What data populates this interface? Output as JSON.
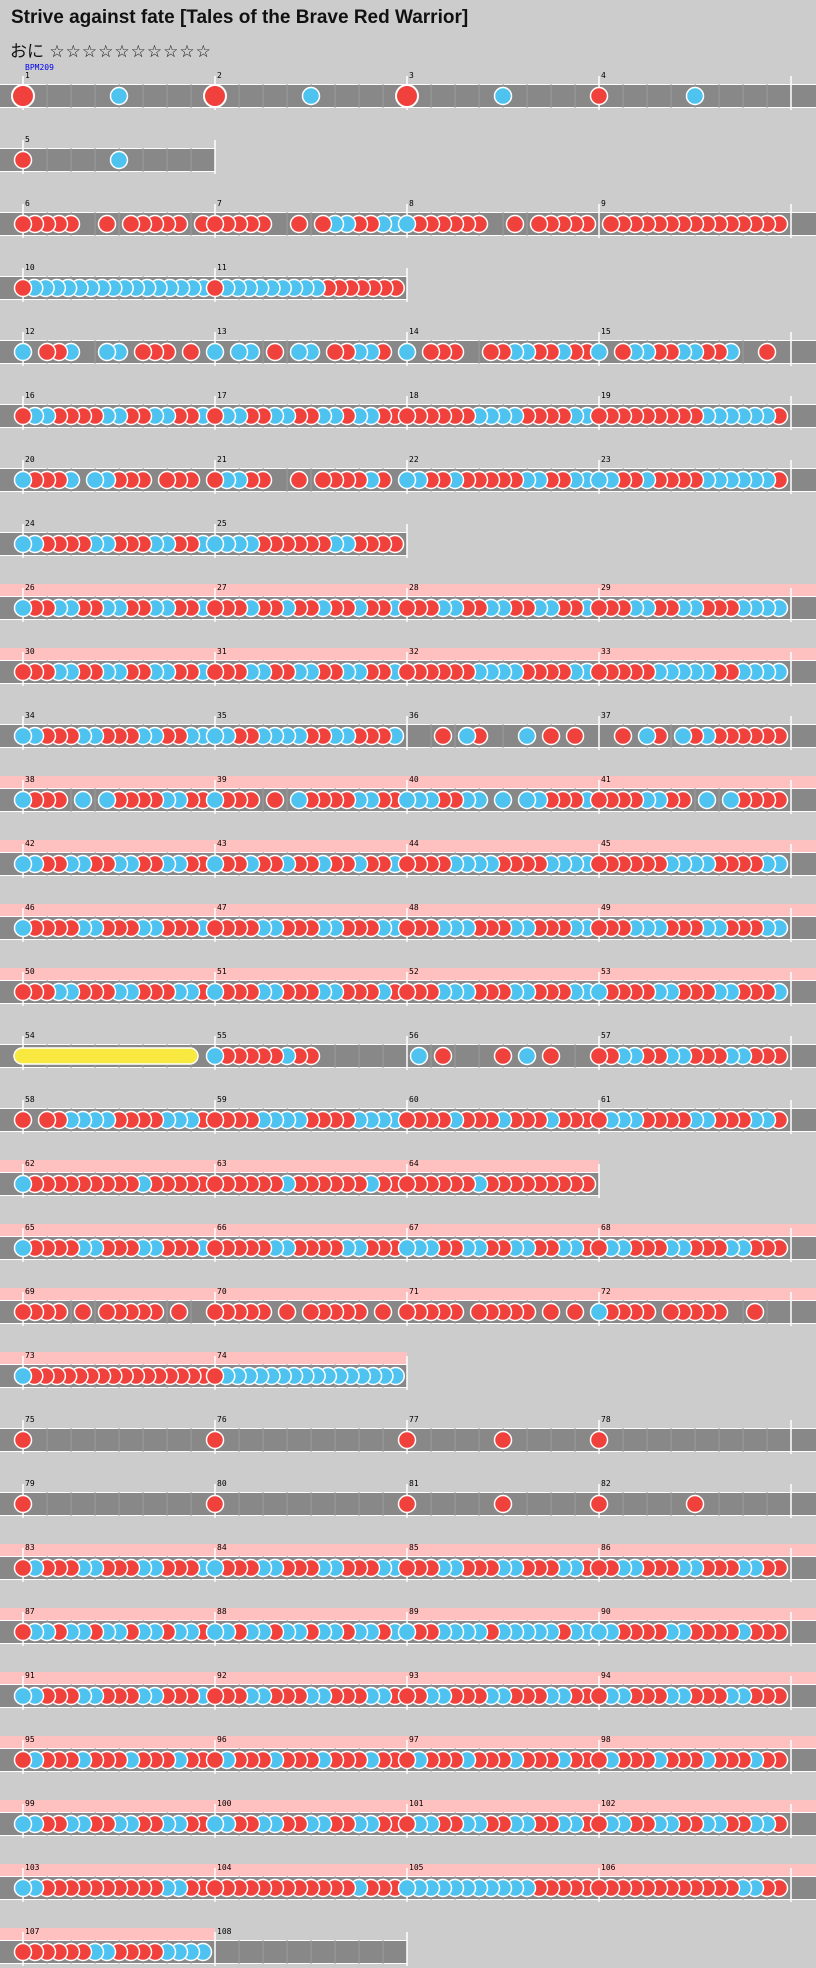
{
  "header": {
    "title": "Strive against fate [Tales of the Brave Red Warrior]",
    "difficulty_label": "おに",
    "stars": "☆☆☆☆☆☆☆☆☆☆"
  },
  "bpm_marker": "BPM209",
  "colors": {
    "background": "#cccccc",
    "lane": "#888888",
    "gogo_highlight": "#ffc0c0",
    "don": "#f0413c",
    "ka": "#4fc3f0",
    "drumroll": "#f8e840"
  },
  "notes_legend": {
    "r": "don (red)",
    "b": "ka (blue)",
    "R": "big don",
    "Y": "drumroll"
  },
  "chart_data": {
    "type": "table",
    "rows": [
      {
        "measures": [
          {
            "n": "1",
            "notes": "R_______b_______"
          },
          {
            "n": "2",
            "notes": "R_______b_______"
          },
          {
            "n": "3",
            "notes": "R_______b_______"
          },
          {
            "n": "4",
            "notes": "r_______b_______"
          }
        ],
        "gogo": false
      },
      {
        "measures": [
          {
            "n": "5",
            "notes": "r___b___"
          }
        ],
        "gogo": false
      },
      {
        "measures": [
          {
            "n": "6",
            "notes": "rrrrr__r_rrrrr_r"
          },
          {
            "n": "7",
            "notes": "rrrrr__r_rbbrrbb"
          },
          {
            "n": "8",
            "notes": "brrrrrr__r_rrrrr"
          },
          {
            "n": "9",
            "notes": "_rrrrrrrrrrrrrrr"
          }
        ],
        "gogo": false
      },
      {
        "measures": [
          {
            "n": "10",
            "notes": "rbbbbbbbbbbbbbbbb"
          },
          {
            "n": "11",
            "notes": "rbbbbbbbbbrrrrrrr"
          }
        ],
        "gogo": false
      },
      {
        "measures": [
          {
            "n": "12",
            "notes": "b_rrb__bb_rrr_r_"
          },
          {
            "n": "13",
            "notes": "b_bb_r_bb_rrbbr_"
          },
          {
            "n": "14",
            "notes": "b_rrr__rrbbrrbrr"
          },
          {
            "n": "15",
            "notes": "b_rbbrrbbrrb__r_"
          }
        ],
        "gogo": false
      },
      {
        "measures": [
          {
            "n": "16",
            "notes": "rbbrrrrbbrrbbrrb"
          },
          {
            "n": "17",
            "notes": "rbbrrbbrrbbrbbrr"
          },
          {
            "n": "18",
            "notes": "rrrrrrbbbbrrrrbb"
          },
          {
            "n": "19",
            "notes": "rrrrrrrrrbbbbbbr"
          }
        ],
        "gogo": false
      },
      {
        "measures": [
          {
            "n": "20",
            "notes": "brrrb_bbrrr_rrr_"
          },
          {
            "n": "21",
            "notes": "rbbrr__r_rrrrbr_"
          },
          {
            "n": "22",
            "notes": "bbrrbrrrrrbbrrbb"
          },
          {
            "n": "23",
            "notes": "bbrrbrrrrbbbbbbr"
          }
        ],
        "gogo": false
      },
      {
        "measures": [
          {
            "n": "24",
            "notes": "bbrrrrbbrrrbbrrb"
          },
          {
            "n": "25",
            "notes": "bbbbrrrrrrbbrrrr"
          }
        ],
        "gogo": false
      },
      {
        "measures": [
          {
            "n": "26",
            "notes": "brrbbrrbbrrbbrrb"
          },
          {
            "n": "27",
            "notes": "rrrbrrbrrbrrbrrb"
          },
          {
            "n": "28",
            "notes": "rrrbbrrbbrrbbrrb"
          },
          {
            "n": "29",
            "notes": "rrrbbrrbbrrrbbbb"
          }
        ],
        "gogo": true
      },
      {
        "measures": [
          {
            "n": "30",
            "notes": "rrrbbrrbbrrbbrrb"
          },
          {
            "n": "31",
            "notes": "rrrbbrrbbrrbbrrb"
          },
          {
            "n": "32",
            "notes": "rrrrrrbbbbrrrrbb"
          },
          {
            "n": "33",
            "notes": "rrrrrbbbbbrrbbbb"
          }
        ],
        "gogo": true
      },
      {
        "measures": [
          {
            "n": "34",
            "notes": "bbrrrbbrrrbbrrbb"
          },
          {
            "n": "35",
            "notes": "bbrrbbbbrrbbrrrb"
          },
          {
            "n": "36",
            "notes": "___r_br___b_r_r_"
          },
          {
            "n": "37",
            "notes": "__r_br_brbrrrrrr"
          }
        ],
        "gogo": false
      },
      {
        "measures": [
          {
            "n": "38",
            "notes": "brrr_b_brrrrbbrr"
          },
          {
            "n": "39",
            "notes": "brrr_r_brrrrbbrr"
          },
          {
            "n": "40",
            "notes": "bbbrrbb_b_bbrrrb"
          },
          {
            "n": "41",
            "notes": "rrrrbbrr_b_brrrr"
          }
        ],
        "gogo": true
      },
      {
        "measures": [
          {
            "n": "42",
            "notes": "bbrrbbrrbbrrbbrr"
          },
          {
            "n": "43",
            "notes": "brrbrrbrrbrrbrrb"
          },
          {
            "n": "44",
            "notes": "rrrrbbbbrrrrbbbb"
          },
          {
            "n": "45",
            "notes": "rrrrrrbbbbrrrrbb"
          }
        ],
        "gogo": true
      },
      {
        "measures": [
          {
            "n": "46",
            "notes": "brrrrbbrrrbbrrrb"
          },
          {
            "n": "47",
            "notes": "rrrrbbrrrbbrrrbb"
          },
          {
            "n": "48",
            "notes": "rrrbbbrrrbbrrrbb"
          },
          {
            "n": "49",
            "notes": "rrrbbbrrrbbrrrbb"
          }
        ],
        "gogo": true
      },
      {
        "measures": [
          {
            "n": "50",
            "notes": "rrrbbrrrbbrrrbbr"
          },
          {
            "n": "51",
            "notes": "brrrbbrrrbbrrrbr"
          },
          {
            "n": "52",
            "notes": "rrrbbbrrrbbrrrbb"
          },
          {
            "n": "53",
            "notes": "brrrrbbrrrbbrrrb"
          }
        ],
        "gogo": true
      },
      {
        "measures": [
          {
            "n": "54",
            "notes": "Y_______________"
          },
          {
            "n": "55",
            "notes": "brrrrrbrr_______"
          },
          {
            "n": "56",
            "notes": "_b_r____r_b_r___"
          },
          {
            "n": "57",
            "notes": "rrbbrrbbrrrbbrrr"
          }
        ],
        "gogo": false
      },
      {
        "measures": [
          {
            "n": "58",
            "notes": "r_rrbbbbrrrrbbbr"
          },
          {
            "n": "59",
            "notes": "rrrrbbbbrrrrbbbb"
          },
          {
            "n": "60",
            "notes": "rrrrbrrrbrrrbrrr"
          },
          {
            "n": "61",
            "notes": "rbbbrrrrbbrrrbbr"
          }
        ],
        "gogo": false
      },
      {
        "measures": [
          {
            "n": "62",
            "notes": "brrrrrrrrrbrrrrr"
          },
          {
            "n": "63",
            "notes": "rrrrrrbrrrrrrbrr"
          },
          {
            "n": "64",
            "notes": "rrrrrrbrrrrrrrrr"
          }
        ],
        "gogo": true
      },
      {
        "measures": [
          {
            "n": "65",
            "notes": "brrrrbbrrrbbrrrb"
          },
          {
            "n": "66",
            "notes": "rrrrrbbrrrrbbrrr"
          },
          {
            "n": "67",
            "notes": "bbbrrbbrrbbrrbbr"
          },
          {
            "n": "68",
            "notes": "rbbrrrbbrrrbbrrr"
          }
        ],
        "gogo": true
      },
      {
        "measures": [
          {
            "n": "69",
            "notes": "rrrr_r_rrrrr_r__"
          },
          {
            "n": "70",
            "notes": "rrrrr_r_rrrrr_r_"
          },
          {
            "n": "71",
            "notes": "rrrrr_rrrrr_r_r_"
          },
          {
            "n": "72",
            "notes": "brrrr_rrrrr__r__"
          }
        ],
        "gogo": true
      },
      {
        "measures": [
          {
            "n": "73",
            "notes": "brrrrrrrrrrrrrrrr"
          },
          {
            "n": "74",
            "notes": "rbbbbbbbbbbbbbbbb"
          }
        ],
        "gogo": true
      },
      {
        "measures": [
          {
            "n": "75",
            "notes": "r_______________"
          },
          {
            "n": "76",
            "notes": "r_______________"
          },
          {
            "n": "77",
            "notes": "r_______r_______"
          },
          {
            "n": "78",
            "notes": "r_______________"
          }
        ],
        "gogo": false
      },
      {
        "measures": [
          {
            "n": "79",
            "notes": "r_______________"
          },
          {
            "n": "80",
            "notes": "r_______________"
          },
          {
            "n": "81",
            "notes": "r_______r_______"
          },
          {
            "n": "82",
            "notes": "r_______r_______"
          }
        ],
        "gogo": false
      },
      {
        "measures": [
          {
            "n": "83",
            "notes": "rbrrrbbrrrbbrrrb"
          },
          {
            "n": "84",
            "notes": "brrrbbrrrbbrrrbb"
          },
          {
            "n": "85",
            "notes": "rrrbbrrrbbrrrbbr"
          },
          {
            "n": "86",
            "notes": "rrbbrrrbbrrrbbrr"
          }
        ],
        "gogo": true
      },
      {
        "measures": [
          {
            "n": "87",
            "notes": "rbbrbbrbbrbbrbbr"
          },
          {
            "n": "88",
            "notes": "bbrbbrbbrbbrbbrb"
          },
          {
            "n": "89",
            "notes": "brrbbbbrbbbbbrbb"
          },
          {
            "n": "90",
            "notes": "bbrrrrbbrrrrbrrr"
          }
        ],
        "gogo": true
      },
      {
        "measures": [
          {
            "n": "91",
            "notes": "bbrrrbbrrrbbrrrb"
          },
          {
            "n": "92",
            "notes": "rrrbbrrrbbrrrbbr"
          },
          {
            "n": "93",
            "notes": "rrbbrrrbbrrrbbrr"
          },
          {
            "n": "94",
            "notes": "rbbrrrbbrrrbbrrr"
          }
        ],
        "gogo": true
      },
      {
        "measures": [
          {
            "n": "95",
            "notes": "rbrrrbrrrbrrrbrr"
          },
          {
            "n": "96",
            "notes": "rbrrrbrrrbrrrbrr"
          },
          {
            "n": "97",
            "notes": "rbrrrbrrrbrrrbrr"
          },
          {
            "n": "98",
            "notes": "rbrrrbrrrbrrrbrr"
          }
        ],
        "gogo": true
      },
      {
        "measures": [
          {
            "n": "99",
            "notes": "bbrrbbrrbbrrbbrr"
          },
          {
            "n": "100",
            "notes": "bbrrbbrrbbrrbbrr"
          },
          {
            "n": "101",
            "notes": "rbbrrbbrrbbrrbbr"
          },
          {
            "n": "102",
            "notes": "rbbrrbbrrbbrrbbr"
          }
        ],
        "gogo": true
      },
      {
        "measures": [
          {
            "n": "103",
            "notes": "bbrrrrrrrrrrbbrr"
          },
          {
            "n": "104",
            "notes": "rrrrrrrrrrrrbrrr"
          },
          {
            "n": "105",
            "notes": "bbbbbbbbbbbrrrrr"
          },
          {
            "n": "106",
            "notes": "rrrrrrrrrrrrbbrr"
          }
        ],
        "gogo": true
      },
      {
        "measures": [
          {
            "n": "107",
            "notes": "rrrrrrbbrrrrbbbb"
          },
          {
            "n": "108",
            "notes": ""
          }
        ],
        "gogo": true,
        "gogo_measures": 1
      }
    ]
  }
}
